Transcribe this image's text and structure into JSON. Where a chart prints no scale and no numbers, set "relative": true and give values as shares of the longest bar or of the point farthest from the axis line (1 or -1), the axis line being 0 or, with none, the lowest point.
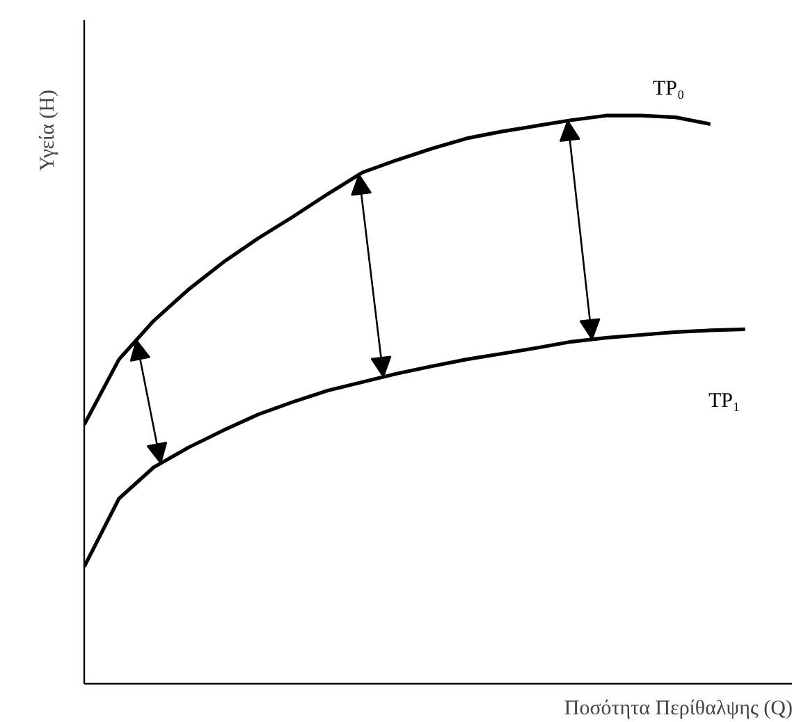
{
  "chart_data": {
    "type": "line",
    "relative": true,
    "xlabel": "Ποσότητα Περίθαλψης (Q)",
    "ylabel": "Υγεία (H)",
    "grid": false,
    "marker": "none",
    "line_style": "solid",
    "categories": [
      null,
      null,
      null,
      null,
      null,
      null,
      null,
      null,
      null,
      null,
      null,
      null,
      null,
      null,
      null,
      null,
      null,
      null,
      null,
      null
    ],
    "series": [
      {
        "name": "TP₀",
        "color": "#000000",
        "values": [
          0.456,
          0.571,
          0.639,
          0.694,
          0.742,
          0.784,
          0.822,
          0.862,
          0.9,
          0.922,
          0.942,
          0.96,
          0.972,
          0.982,
          0.992,
          1.0,
          1.0,
          0.997,
          0.985,
          null
        ]
      },
      {
        "name": "TP₁",
        "color": "#000000",
        "values": [
          0.206,
          0.326,
          0.381,
          0.416,
          0.446,
          0.474,
          0.496,
          0.516,
          0.531,
          0.546,
          0.559,
          0.571,
          0.581,
          0.591,
          0.602,
          0.609,
          0.614,
          0.619,
          0.622,
          0.624
        ]
      }
    ]
  }
}
